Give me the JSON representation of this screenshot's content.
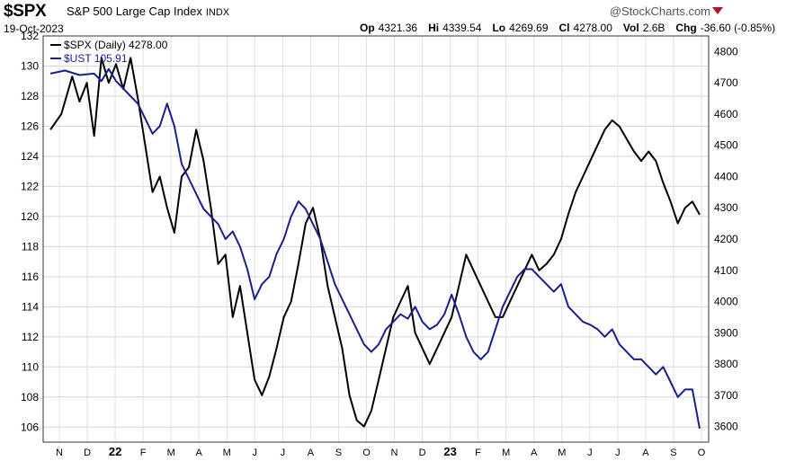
{
  "header": {
    "symbol": "$SPX",
    "name": "S&P 500 Large Cap Index",
    "exchange": "INDX",
    "date": "19-Oct-2023",
    "brand": "@StockCharts.com",
    "quotes": [
      {
        "label": "Op",
        "value": "4321.36"
      },
      {
        "label": "Hi",
        "value": "4339.54"
      },
      {
        "label": "Lo",
        "value": "4269.69"
      },
      {
        "label": "Cl",
        "value": "4278.00"
      },
      {
        "label": "Vol",
        "value": "2.6B"
      },
      {
        "label": "Chg",
        "value": "-36.60 (-0.85%)"
      }
    ]
  },
  "chart_data": {
    "type": "line",
    "legend_position": "top-left",
    "grid": true,
    "left_axis": {
      "ylim": [
        105,
        132
      ],
      "ticks": [
        106,
        108,
        110,
        112,
        114,
        116,
        118,
        120,
        122,
        124,
        126,
        128,
        130,
        132
      ]
    },
    "right_axis": {
      "ylim": [
        3550,
        4850
      ],
      "ticks": [
        3600,
        3700,
        3800,
        3900,
        4000,
        4100,
        4200,
        4300,
        4400,
        4500,
        4600,
        4700,
        4800
      ]
    },
    "x_ticks": [
      "N",
      "D",
      "22",
      "F",
      "M",
      "A",
      "M",
      "J",
      "J",
      "A",
      "S",
      "O",
      "N",
      "D",
      "23",
      "F",
      "M",
      "A",
      "M",
      "J",
      "J",
      "A",
      "S",
      "O"
    ],
    "series": [
      {
        "name": "$SPX (Daily) 4278.00",
        "axis": "right",
        "color": "#000000",
        "points": [
          [
            0,
            4550
          ],
          [
            3,
            4600
          ],
          [
            6,
            4720
          ],
          [
            8,
            4640
          ],
          [
            10,
            4700
          ],
          [
            12,
            4530
          ],
          [
            14,
            4780
          ],
          [
            16,
            4700
          ],
          [
            18,
            4760
          ],
          [
            20,
            4680
          ],
          [
            22,
            4780
          ],
          [
            24,
            4650
          ],
          [
            26,
            4500
          ],
          [
            28,
            4350
          ],
          [
            30,
            4400
          ],
          [
            32,
            4300
          ],
          [
            34,
            4220
          ],
          [
            36,
            4400
          ],
          [
            38,
            4430
          ],
          [
            40,
            4550
          ],
          [
            42,
            4450
          ],
          [
            44,
            4300
          ],
          [
            46,
            4120
          ],
          [
            48,
            4150
          ],
          [
            50,
            3950
          ],
          [
            52,
            4050
          ],
          [
            54,
            3900
          ],
          [
            56,
            3750
          ],
          [
            58,
            3700
          ],
          [
            60,
            3760
          ],
          [
            62,
            3850
          ],
          [
            64,
            3950
          ],
          [
            66,
            4000
          ],
          [
            68,
            4120
          ],
          [
            70,
            4250
          ],
          [
            72,
            4300
          ],
          [
            74,
            4200
          ],
          [
            76,
            4050
          ],
          [
            78,
            3950
          ],
          [
            80,
            3850
          ],
          [
            82,
            3700
          ],
          [
            84,
            3620
          ],
          [
            86,
            3600
          ],
          [
            88,
            3650
          ],
          [
            90,
            3750
          ],
          [
            92,
            3850
          ],
          [
            94,
            3950
          ],
          [
            96,
            4000
          ],
          [
            98,
            4050
          ],
          [
            100,
            3900
          ],
          [
            102,
            3850
          ],
          [
            104,
            3800
          ],
          [
            106,
            3850
          ],
          [
            108,
            3900
          ],
          [
            110,
            3950
          ],
          [
            112,
            4050
          ],
          [
            114,
            4150
          ],
          [
            116,
            4100
          ],
          [
            118,
            4050
          ],
          [
            120,
            4000
          ],
          [
            122,
            3950
          ],
          [
            124,
            3950
          ],
          [
            126,
            4000
          ],
          [
            128,
            4050
          ],
          [
            130,
            4100
          ],
          [
            132,
            4150
          ],
          [
            134,
            4100
          ],
          [
            136,
            4120
          ],
          [
            138,
            4150
          ],
          [
            140,
            4200
          ],
          [
            142,
            4280
          ],
          [
            144,
            4350
          ],
          [
            146,
            4400
          ],
          [
            148,
            4450
          ],
          [
            150,
            4500
          ],
          [
            152,
            4550
          ],
          [
            154,
            4580
          ],
          [
            156,
            4560
          ],
          [
            158,
            4520
          ],
          [
            160,
            4480
          ],
          [
            162,
            4450
          ],
          [
            164,
            4480
          ],
          [
            166,
            4450
          ],
          [
            168,
            4380
          ],
          [
            170,
            4320
          ],
          [
            172,
            4250
          ],
          [
            174,
            4300
          ],
          [
            176,
            4320
          ],
          [
            178,
            4278
          ]
        ]
      },
      {
        "name": "$UST 105.91",
        "axis": "left",
        "color": "#1b1f8c",
        "points": [
          [
            0,
            129.5
          ],
          [
            4,
            129.7
          ],
          [
            8,
            129.4
          ],
          [
            12,
            129.5
          ],
          [
            14,
            129.0
          ],
          [
            16,
            129.8
          ],
          [
            18,
            129.0
          ],
          [
            20,
            128.5
          ],
          [
            22,
            128.0
          ],
          [
            24,
            127.5
          ],
          [
            26,
            126.5
          ],
          [
            28,
            125.5
          ],
          [
            30,
            126.0
          ],
          [
            32,
            127.5
          ],
          [
            34,
            126.0
          ],
          [
            36,
            123.5
          ],
          [
            38,
            122.5
          ],
          [
            40,
            121.5
          ],
          [
            42,
            120.5
          ],
          [
            44,
            120.0
          ],
          [
            46,
            119.5
          ],
          [
            48,
            118.5
          ],
          [
            50,
            119.0
          ],
          [
            52,
            118.0
          ],
          [
            54,
            116.5
          ],
          [
            56,
            114.5
          ],
          [
            58,
            115.5
          ],
          [
            60,
            116.0
          ],
          [
            62,
            117.5
          ],
          [
            64,
            118.5
          ],
          [
            66,
            120.0
          ],
          [
            68,
            121.0
          ],
          [
            70,
            120.5
          ],
          [
            72,
            119.5
          ],
          [
            74,
            118.5
          ],
          [
            76,
            117.0
          ],
          [
            78,
            115.5
          ],
          [
            80,
            114.5
          ],
          [
            82,
            113.5
          ],
          [
            84,
            112.5
          ],
          [
            86,
            111.5
          ],
          [
            88,
            111.0
          ],
          [
            90,
            111.5
          ],
          [
            92,
            112.5
          ],
          [
            94,
            113.0
          ],
          [
            96,
            113.5
          ],
          [
            98,
            113.2
          ],
          [
            100,
            114.0
          ],
          [
            102,
            113.0
          ],
          [
            104,
            112.5
          ],
          [
            106,
            112.8
          ],
          [
            108,
            113.5
          ],
          [
            110,
            114.8
          ],
          [
            112,
            113.5
          ],
          [
            114,
            112.0
          ],
          [
            116,
            111.0
          ],
          [
            118,
            110.5
          ],
          [
            120,
            111.0
          ],
          [
            122,
            112.5
          ],
          [
            124,
            114.0
          ],
          [
            126,
            115.0
          ],
          [
            128,
            116.0
          ],
          [
            130,
            116.5
          ],
          [
            132,
            116.5
          ],
          [
            134,
            116.0
          ],
          [
            136,
            115.5
          ],
          [
            138,
            115.0
          ],
          [
            140,
            115.5
          ],
          [
            142,
            114.0
          ],
          [
            144,
            113.5
          ],
          [
            146,
            113.0
          ],
          [
            148,
            112.8
          ],
          [
            150,
            112.5
          ],
          [
            152,
            112.0
          ],
          [
            154,
            112.5
          ],
          [
            156,
            111.5
          ],
          [
            158,
            111.0
          ],
          [
            160,
            110.5
          ],
          [
            162,
            110.5
          ],
          [
            164,
            110.0
          ],
          [
            166,
            109.5
          ],
          [
            168,
            110.0
          ],
          [
            170,
            109.0
          ],
          [
            172,
            108.0
          ],
          [
            174,
            108.5
          ],
          [
            176,
            108.5
          ],
          [
            178,
            105.9
          ]
        ]
      }
    ]
  }
}
